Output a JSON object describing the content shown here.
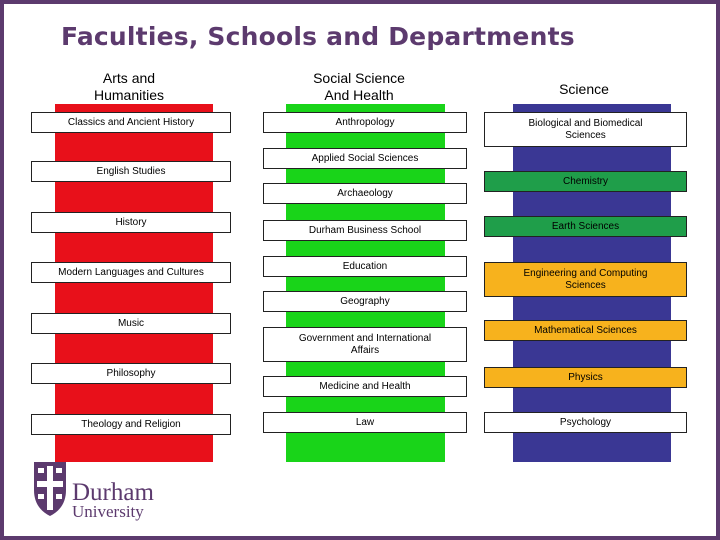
{
  "title": "Faculties, Schools and Departments",
  "columns": {
    "arts": {
      "heading_line1": "Arts and",
      "heading_line2": "Humanities",
      "color": "#e8101a"
    },
    "social": {
      "heading_line1": "Social Science",
      "heading_line2": "And Health",
      "color": "#19d419"
    },
    "science": {
      "heading": "Science",
      "color": "#3a3794"
    }
  },
  "departments": {
    "classics": "Classics and Ancient History",
    "english": "English Studies",
    "history": "History",
    "modern_languages": "Modern Languages and Cultures",
    "music": "Music",
    "philosophy": "Philosophy",
    "theology": "Theology and Religion",
    "anthropology": "Anthropology",
    "applied_social": "Applied Social Sciences",
    "archaeology": "Archaeology",
    "business_school": "Durham Business School",
    "education": "Education",
    "geography": "Geography",
    "government_line1": "Government and International",
    "government_line2": "Affairs",
    "medicine": "Medicine and Health",
    "law": "Law",
    "biosciences_line1": "Biological and Biomedical",
    "biosciences_line2": "Sciences",
    "chemistry": "Chemistry",
    "earth_sciences": "Earth Sciences",
    "engineering_line1": "Engineering and Computing",
    "engineering_line2": "Sciences",
    "mathematics": "Mathematical Sciences",
    "physics": "Physics",
    "psychology": "Psychology"
  },
  "colors": {
    "green_box": "#1f9e4a",
    "orange_box": "#f7b21d",
    "brand_purple": "#5c3a6e"
  },
  "logo": {
    "line1": "Durham",
    "line2": "University",
    "icon": "durham-crest-icon"
  }
}
